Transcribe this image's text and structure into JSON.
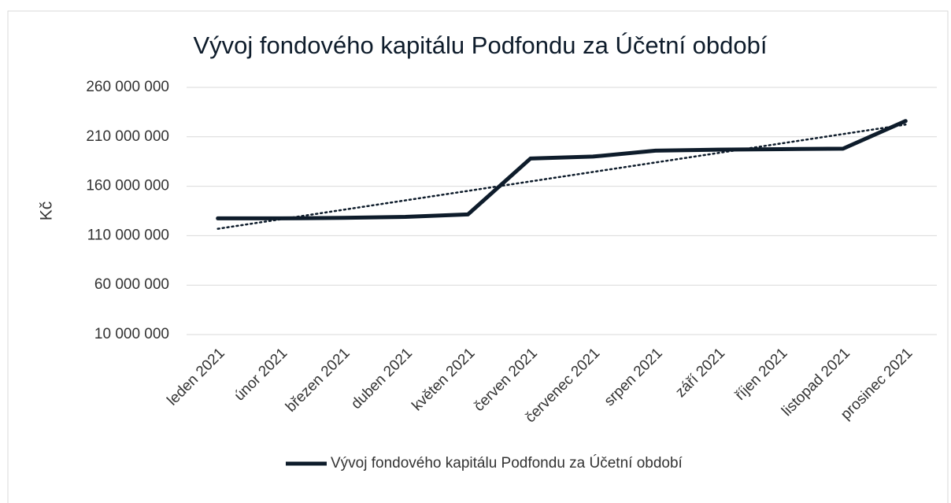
{
  "chart_data": {
    "type": "line",
    "title": "Vývoj fondového kapitálu Podfondu za Účetní období",
    "y_label": "Kč",
    "categories": [
      "leden 2021",
      "únor 2021",
      "březen 2021",
      "duben 2021",
      "květen 2021",
      "červen 2021",
      "červenec 2021",
      "srpen 2021",
      "září 2021",
      "říjen 2021",
      "listopad 2021",
      "prosinec 2021"
    ],
    "series": [
      {
        "name": "Vývoj fondového kapitálu Podfondu za Účetní období",
        "color": "#0e1c2b",
        "values": [
          127500000,
          127500000,
          128000000,
          129000000,
          131500000,
          188000000,
          190000000,
          196000000,
          197000000,
          197500000,
          198000000,
          226000000
        ]
      }
    ],
    "trendline": "linear",
    "ylim": [
      10000000,
      260000000
    ],
    "yticks": [
      {
        "value": 10000000,
        "label": "10 000 000"
      },
      {
        "value": 60000000,
        "label": "60 000 000"
      },
      {
        "value": 110000000,
        "label": "110 000 000"
      },
      {
        "value": 160000000,
        "label": "160 000 000"
      },
      {
        "value": 210000000,
        "label": "210 000 000"
      },
      {
        "value": 260000000,
        "label": "260 000 000"
      }
    ],
    "grid": true,
    "legend": "bottom"
  }
}
